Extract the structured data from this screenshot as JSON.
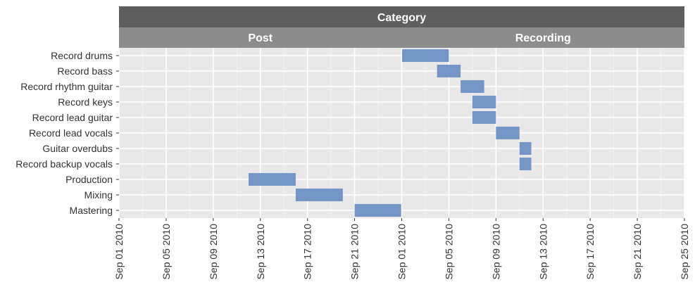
{
  "chart_data": {
    "type": "gantt",
    "facet_title": "Category",
    "panels": [
      {
        "name": "Post",
        "xlim": [
          "2010-09-01",
          "2010-09-25"
        ],
        "tick_labels": [
          "Sep 01 2010",
          "Sep 05 2010",
          "Sep 09 2010",
          "Sep 13 2010",
          "Sep 17 2010",
          "Sep 21 2010"
        ],
        "tick_dates": [
          "2010-09-01",
          "2010-09-05",
          "2010-09-09",
          "2010-09-13",
          "2010-09-17",
          "2010-09-21"
        ]
      },
      {
        "name": "Recording",
        "xlim": [
          "2010-09-01",
          "2010-09-25"
        ],
        "tick_labels": [
          "Sep 01 2010",
          "Sep 05 2010",
          "Sep 09 2010",
          "Sep 13 2010",
          "Sep 17 2010",
          "Sep 21 2010",
          "Sep 25 2010"
        ],
        "tick_dates": [
          "2010-09-01",
          "2010-09-05",
          "2010-09-09",
          "2010-09-13",
          "2010-09-17",
          "2010-09-21",
          "2010-09-25"
        ]
      }
    ],
    "tasks": [
      {
        "task": "Record drums",
        "category": "Recording",
        "start": "2010-09-01",
        "end": "2010-09-05"
      },
      {
        "task": "Record bass",
        "category": "Recording",
        "start": "2010-09-04",
        "end": "2010-09-06"
      },
      {
        "task": "Record rhythm guitar",
        "category": "Recording",
        "start": "2010-09-06",
        "end": "2010-09-08"
      },
      {
        "task": "Record keys",
        "category": "Recording",
        "start": "2010-09-07",
        "end": "2010-09-09"
      },
      {
        "task": "Record lead guitar",
        "category": "Recording",
        "start": "2010-09-07",
        "end": "2010-09-09"
      },
      {
        "task": "Record lead vocals",
        "category": "Recording",
        "start": "2010-09-09",
        "end": "2010-09-11"
      },
      {
        "task": "Guitar overdubs",
        "category": "Recording",
        "start": "2010-09-11",
        "end": "2010-09-12"
      },
      {
        "task": "Record backup vocals",
        "category": "Recording",
        "start": "2010-09-11",
        "end": "2010-09-12"
      },
      {
        "task": "Production",
        "category": "Post",
        "start": "2010-09-12",
        "end": "2010-09-16"
      },
      {
        "task": "Mixing",
        "category": "Post",
        "start": "2010-09-16",
        "end": "2010-09-20"
      },
      {
        "task": "Mastering",
        "category": "Post",
        "start": "2010-09-21",
        "end": "2010-09-25"
      }
    ],
    "bar_color": "#7090c5",
    "panel_background": "#e8e8e8",
    "grid": true,
    "grid_color": "#ffffff",
    "strip_top_color": "#5e5e5e",
    "strip_color": "#8c8c8c",
    "legend": "none"
  }
}
